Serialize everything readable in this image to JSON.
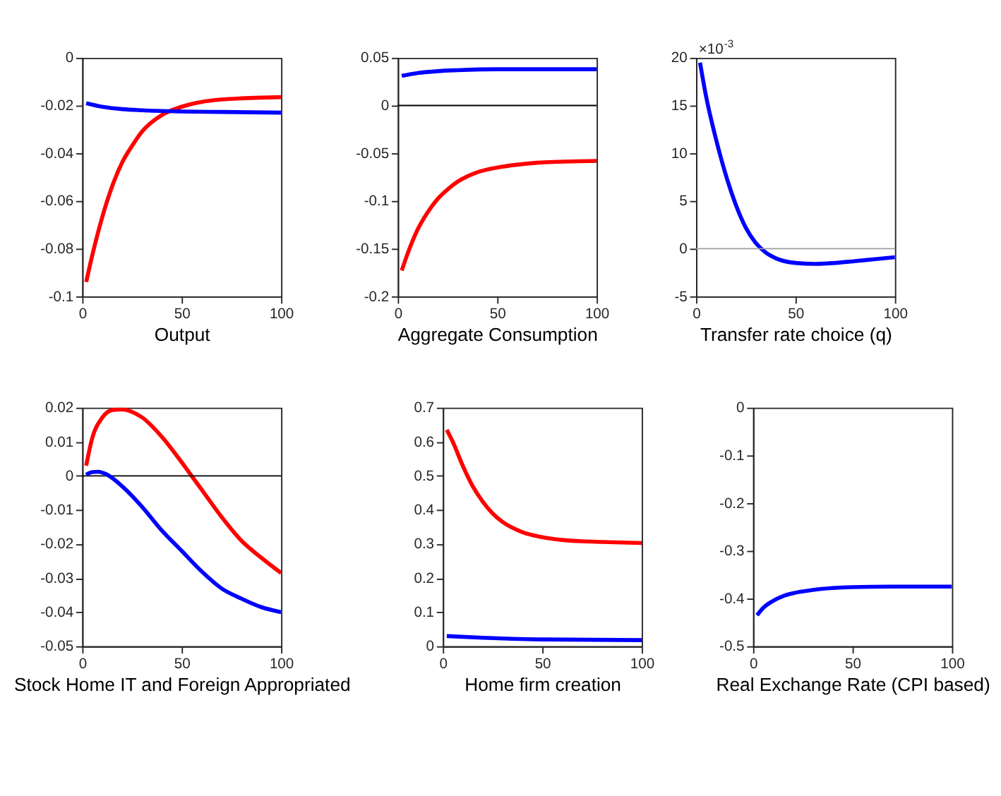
{
  "chart_data": [
    {
      "type": "line",
      "xlabel": "Output",
      "xlim": [
        0,
        100
      ],
      "xticks": [
        0,
        50,
        100
      ],
      "ylim": [
        -0.1,
        0
      ],
      "yticks": [
        -0.1,
        -0.08,
        -0.06,
        -0.04,
        -0.02,
        0
      ],
      "grid": false,
      "legend": false,
      "series": [
        {
          "color": "#ff0000",
          "x": [
            2,
            5,
            10,
            15,
            20,
            25,
            30,
            40,
            50,
            60,
            70,
            80,
            90,
            100
          ],
          "values": [
            -0.094,
            -0.083,
            -0.067,
            -0.054,
            -0.044,
            -0.037,
            -0.031,
            -0.024,
            -0.0205,
            -0.0185,
            -0.0175,
            -0.017,
            -0.0167,
            -0.0165
          ]
        },
        {
          "color": "#0000ff",
          "x": [
            2,
            10,
            20,
            30,
            50,
            70,
            100
          ],
          "values": [
            -0.019,
            -0.0205,
            -0.0215,
            -0.022,
            -0.0225,
            -0.0227,
            -0.023
          ]
        }
      ]
    },
    {
      "type": "line",
      "xlabel": "Aggregate Consumption",
      "xlim": [
        0,
        100
      ],
      "xticks": [
        0,
        50,
        100
      ],
      "ylim": [
        -0.2,
        0.05
      ],
      "yticks": [
        -0.2,
        -0.15,
        -0.1,
        -0.05,
        0,
        0.05
      ],
      "grid": false,
      "legend": false,
      "ref_lines": [
        {
          "axis": "y",
          "value": 0,
          "color": "#000000"
        }
      ],
      "series": [
        {
          "color": "#ff0000",
          "x": [
            2,
            5,
            10,
            15,
            20,
            25,
            30,
            40,
            50,
            60,
            70,
            80,
            100
          ],
          "values": [
            -0.173,
            -0.155,
            -0.13,
            -0.112,
            -0.098,
            -0.088,
            -0.08,
            -0.07,
            -0.065,
            -0.062,
            -0.06,
            -0.059,
            -0.058
          ]
        },
        {
          "color": "#0000ff",
          "x": [
            2,
            10,
            20,
            30,
            50,
            100
          ],
          "values": [
            0.031,
            0.034,
            0.036,
            0.037,
            0.038,
            0.038
          ]
        }
      ]
    },
    {
      "type": "line",
      "xlabel": "Transfer rate choice (q)",
      "annotations": [
        "×10$^{-3}$"
      ],
      "xlim": [
        0,
        100
      ],
      "xticks": [
        0,
        50,
        100
      ],
      "ylim": [
        -5,
        20
      ],
      "yticks": [
        -5,
        0,
        5,
        10,
        15,
        20
      ],
      "grid": false,
      "legend": false,
      "ref_lines": [
        {
          "axis": "y",
          "value": 0,
          "color": "#a0a0a0"
        }
      ],
      "series": [
        {
          "color": "#0000ff",
          "x": [
            2,
            5,
            10,
            15,
            20,
            25,
            30,
            35,
            40,
            50,
            60,
            70,
            80,
            90,
            100
          ],
          "values": [
            19.5,
            16,
            11.5,
            7.7,
            4.6,
            2.2,
            0.6,
            -0.4,
            -1.0,
            -1.5,
            -1.6,
            -1.5,
            -1.3,
            -1.1,
            -0.9
          ]
        }
      ]
    },
    {
      "type": "line",
      "xlabel": "Stock Home IT and Foreign Appropriated",
      "xlim": [
        0,
        100
      ],
      "xticks": [
        0,
        50,
        100
      ],
      "ylim": [
        -0.05,
        0.02
      ],
      "yticks": [
        -0.05,
        -0.04,
        -0.03,
        -0.02,
        -0.01,
        0,
        0.01,
        0.02
      ],
      "grid": false,
      "legend": false,
      "ref_lines": [
        {
          "axis": "y",
          "value": 0,
          "color": "#000000"
        }
      ],
      "series": [
        {
          "color": "#ff0000",
          "x": [
            2,
            5,
            10,
            15,
            20,
            25,
            30,
            40,
            50,
            55,
            60,
            70,
            80,
            90,
            100
          ],
          "values": [
            0.003,
            0.011,
            0.017,
            0.0193,
            0.0195,
            0.0188,
            0.0172,
            0.0115,
            0.004,
            0.0,
            -0.004,
            -0.012,
            -0.019,
            -0.024,
            -0.0285
          ]
        },
        {
          "color": "#0000ff",
          "x": [
            2,
            5,
            8,
            12,
            20,
            30,
            40,
            50,
            60,
            70,
            80,
            90,
            100
          ],
          "values": [
            0.0003,
            0.0011,
            0.0012,
            0.0005,
            -0.003,
            -0.009,
            -0.016,
            -0.022,
            -0.028,
            -0.033,
            -0.036,
            -0.0385,
            -0.04
          ]
        }
      ]
    },
    {
      "type": "line",
      "xlabel": "Home firm creation",
      "xlim": [
        0,
        100
      ],
      "xticks": [
        0,
        50,
        100
      ],
      "ylim": [
        0,
        0.7
      ],
      "yticks": [
        0,
        0.1,
        0.2,
        0.3,
        0.4,
        0.5,
        0.6,
        0.7
      ],
      "grid": false,
      "legend": false,
      "series": [
        {
          "color": "#ff0000",
          "x": [
            2,
            5,
            10,
            15,
            20,
            25,
            30,
            40,
            50,
            60,
            70,
            80,
            100
          ],
          "values": [
            0.635,
            0.6,
            0.53,
            0.47,
            0.425,
            0.39,
            0.365,
            0.335,
            0.32,
            0.312,
            0.308,
            0.306,
            0.303
          ]
        },
        {
          "color": "#0000ff",
          "x": [
            2,
            20,
            50,
            100
          ],
          "values": [
            0.03,
            0.025,
            0.02,
            0.018
          ]
        }
      ]
    },
    {
      "type": "line",
      "xlabel": "Real Exchange Rate (CPI based)",
      "xlim": [
        0,
        100
      ],
      "xticks": [
        0,
        50,
        100
      ],
      "ylim": [
        -0.5,
        0
      ],
      "yticks": [
        -0.5,
        -0.4,
        -0.3,
        -0.2,
        -0.1,
        0
      ],
      "grid": false,
      "legend": false,
      "series": [
        {
          "color": "#0000ff",
          "x": [
            2,
            5,
            10,
            15,
            20,
            30,
            40,
            50,
            70,
            100
          ],
          "values": [
            -0.435,
            -0.42,
            -0.405,
            -0.395,
            -0.389,
            -0.382,
            -0.378,
            -0.376,
            -0.375,
            -0.375
          ]
        }
      ]
    }
  ]
}
